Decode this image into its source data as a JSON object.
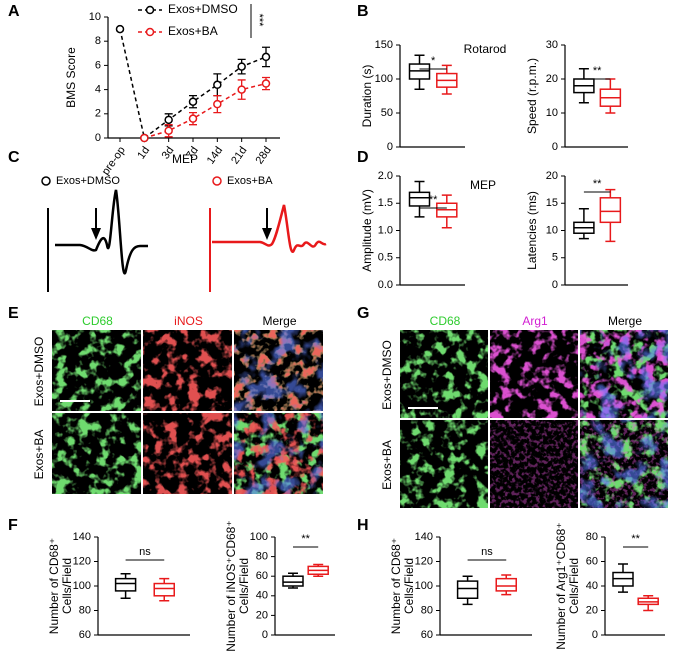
{
  "panel_labels": [
    "A",
    "B",
    "C",
    "D",
    "E",
    "F",
    "G",
    "H"
  ],
  "chart_data": [
    {
      "type": "line",
      "ylabel": "BMS Score",
      "categories": [
        "pre-op",
        "1d",
        "3d",
        "7d",
        "14d",
        "21d",
        "28d"
      ],
      "ylim": [
        0,
        10
      ],
      "yticks": [
        0,
        2,
        4,
        6,
        8,
        10
      ],
      "significance": "***",
      "series": [
        {
          "name": "Exos+DMSO",
          "color": "#000000",
          "values": [
            9,
            0,
            1.5,
            3.0,
            4.4,
            5.9,
            6.7
          ],
          "errors": [
            0,
            0,
            0.5,
            0.5,
            0.9,
            0.6,
            0.8
          ]
        },
        {
          "name": "Exos+BA",
          "color": "#e8191b",
          "values": [
            null,
            0,
            0.6,
            1.6,
            2.8,
            4.0,
            4.5
          ],
          "errors": [
            null,
            0,
            0.5,
            0.5,
            0.7,
            0.8,
            0.5
          ]
        }
      ]
    },
    {
      "type": "box",
      "title": "Rotarod",
      "ylabel": [
        "Duration (s)"
      ],
      "ylim": [
        0,
        150
      ],
      "yticks": [
        0,
        50,
        100,
        150
      ],
      "significance": "*",
      "boxes": [
        {
          "color": "#000000",
          "min": 85,
          "q1": 100,
          "median": 112,
          "q3": 122,
          "max": 135
        },
        {
          "color": "#e8191b",
          "min": 78,
          "q1": 88,
          "median": 98,
          "q3": 108,
          "max": 120
        }
      ]
    },
    {
      "type": "box",
      "ylabel": [
        "Speed (r.p.m.)"
      ],
      "ylim": [
        0,
        30
      ],
      "yticks": [
        0,
        10,
        20,
        30
      ],
      "significance": "**",
      "boxes": [
        {
          "color": "#000000",
          "min": 13,
          "q1": 16,
          "median": 18,
          "q3": 20,
          "max": 23
        },
        {
          "color": "#e8191b",
          "min": 10,
          "q1": 12,
          "median": 14.5,
          "q3": 17,
          "max": 20
        }
      ]
    },
    {
      "type": "box",
      "title": "MEP",
      "ylabel": [
        "Amplitude (mV)"
      ],
      "ylim": [
        0,
        2
      ],
      "yticks": [
        {
          "value": 0,
          "label": "0.0"
        },
        {
          "value": 0.5,
          "label": "0.5"
        },
        {
          "value": 1,
          "label": "1.0"
        },
        {
          "value": 1.5,
          "label": "1.5"
        },
        {
          "value": 2,
          "label": "2.0"
        }
      ],
      "significance": "**",
      "boxes": [
        {
          "color": "#000000",
          "min": 1.25,
          "q1": 1.45,
          "median": 1.6,
          "q3": 1.7,
          "max": 1.9
        },
        {
          "color": "#e8191b",
          "min": 1.05,
          "q1": 1.25,
          "median": 1.38,
          "q3": 1.5,
          "max": 1.65
        }
      ]
    },
    {
      "type": "box",
      "ylabel": [
        "Latencies (ms)"
      ],
      "ylim": [
        0,
        20
      ],
      "yticks": [
        0,
        5,
        10,
        15,
        20
      ],
      "significance": "**",
      "boxes": [
        {
          "color": "#000000",
          "min": 8.5,
          "q1": 9.5,
          "median": 10.5,
          "q3": 11.5,
          "max": 14
        },
        {
          "color": "#e8191b",
          "min": 8,
          "q1": 11.5,
          "median": 13.5,
          "q3": 16,
          "max": 17.5
        }
      ]
    },
    {
      "type": "box",
      "ylabel": [
        "Number of CD68⁺",
        "Cells/Field"
      ],
      "ylim": [
        60,
        140
      ],
      "yticks": [
        60,
        80,
        100,
        120,
        140
      ],
      "significance": "ns",
      "boxes": [
        {
          "color": "#000000",
          "min": 90,
          "q1": 96,
          "median": 102,
          "q3": 106,
          "max": 110
        },
        {
          "color": "#e8191b",
          "min": 88,
          "q1": 92,
          "median": 98,
          "q3": 102,
          "max": 106
        }
      ]
    },
    {
      "type": "box",
      "ylabel": [
        "Number of iNOS⁺CD68⁺",
        "Cells/Field"
      ],
      "ylim": [
        0,
        100
      ],
      "yticks": [
        0,
        20,
        40,
        60,
        80,
        100
      ],
      "significance": "**",
      "boxes": [
        {
          "color": "#000000",
          "min": 48,
          "q1": 50,
          "median": 54,
          "q3": 60,
          "max": 63
        },
        {
          "color": "#e8191b",
          "min": 60,
          "q1": 62,
          "median": 66,
          "q3": 70,
          "max": 72
        }
      ]
    },
    {
      "type": "box",
      "ylabel": [
        "Number of CD68⁺",
        "Cells/Field"
      ],
      "ylim": [
        60,
        140
      ],
      "yticks": [
        60,
        80,
        100,
        120,
        140
      ],
      "significance": "ns",
      "boxes": [
        {
          "color": "#000000",
          "min": 85,
          "q1": 90,
          "median": 98,
          "q3": 104,
          "max": 108
        },
        {
          "color": "#e8191b",
          "min": 93,
          "q1": 96,
          "median": 100,
          "q3": 106,
          "max": 109
        }
      ]
    },
    {
      "type": "box",
      "ylabel": [
        "Number of Arg1⁺CD68⁺",
        "Cells/Field"
      ],
      "ylim": [
        0,
        80
      ],
      "yticks": [
        0,
        20,
        40,
        60,
        80
      ],
      "significance": "**",
      "boxes": [
        {
          "color": "#000000",
          "min": 35,
          "q1": 40,
          "median": 46,
          "q3": 51,
          "max": 58
        },
        {
          "color": "#e8191b",
          "min": 20,
          "q1": 25,
          "median": 27,
          "q3": 30,
          "max": 32
        }
      ]
    }
  ],
  "mep_traces": {
    "title": "MEP",
    "labels": [
      "Exos+DMSO",
      "Exos+BA"
    ]
  },
  "image_grids": [
    {
      "columns": [
        "CD68",
        "iNOS",
        "Merge"
      ],
      "rows": [
        "Exos+DMSO",
        "Exos+BA"
      ]
    },
    {
      "columns": [
        "CD68",
        "Arg1",
        "Merge"
      ],
      "rows": [
        "Exos+DMSO",
        "Exos+BA"
      ]
    }
  ]
}
